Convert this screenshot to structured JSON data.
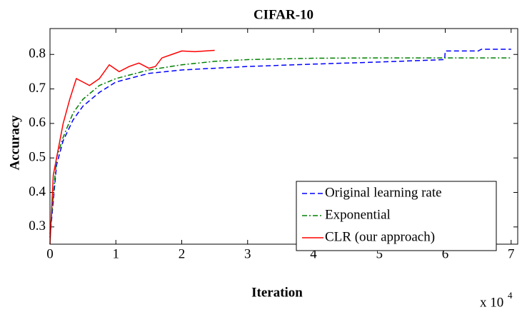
{
  "chart_data": {
    "type": "line",
    "title": "CIFAR-10",
    "x_label": "Iteration",
    "y_label": "Accuracy",
    "x_scale_label": "x 10",
    "x_scale_exponent": "4",
    "xlim": [
      0,
      7.1
    ],
    "ylim": [
      0.25,
      0.875
    ],
    "xticks": [
      0,
      1,
      2,
      3,
      4,
      5,
      6,
      7
    ],
    "yticks": [
      0.3,
      0.4,
      0.5,
      0.6,
      0.7,
      0.8
    ],
    "legend": "lower right",
    "series": [
      {
        "name": "Original learning rate",
        "color": "#0000ff",
        "style": "dashed",
        "x": [
          0,
          0.1,
          0.2,
          0.35,
          0.5,
          0.75,
          1,
          1.5,
          2,
          2.5,
          3,
          4,
          5,
          5.99,
          6.0,
          6.5,
          6.55,
          7
        ],
        "values": [
          0.27,
          0.48,
          0.55,
          0.61,
          0.65,
          0.69,
          0.72,
          0.745,
          0.755,
          0.76,
          0.765,
          0.772,
          0.778,
          0.785,
          0.81,
          0.81,
          0.815,
          0.815
        ]
      },
      {
        "name": "Exponential",
        "color": "#008000",
        "style": "dashdot",
        "x": [
          0,
          0.1,
          0.2,
          0.35,
          0.5,
          0.75,
          1,
          1.5,
          2,
          2.5,
          3,
          4,
          5,
          6,
          7
        ],
        "values": [
          0.28,
          0.5,
          0.56,
          0.63,
          0.67,
          0.71,
          0.73,
          0.755,
          0.77,
          0.78,
          0.785,
          0.789,
          0.79,
          0.79,
          0.79
        ]
      },
      {
        "name": "CLR (our approach)",
        "color": "#ff0000",
        "style": "solid",
        "x": [
          0,
          0.05,
          0.1,
          0.2,
          0.3,
          0.4,
          0.5,
          0.6,
          0.75,
          0.9,
          1.05,
          1.2,
          1.35,
          1.5,
          1.6,
          1.7,
          1.85,
          2,
          2.2,
          2.5
        ],
        "values": [
          0.25,
          0.45,
          0.5,
          0.6,
          0.67,
          0.73,
          0.72,
          0.71,
          0.73,
          0.77,
          0.75,
          0.765,
          0.775,
          0.76,
          0.765,
          0.79,
          0.8,
          0.81,
          0.808,
          0.812
        ]
      }
    ]
  }
}
